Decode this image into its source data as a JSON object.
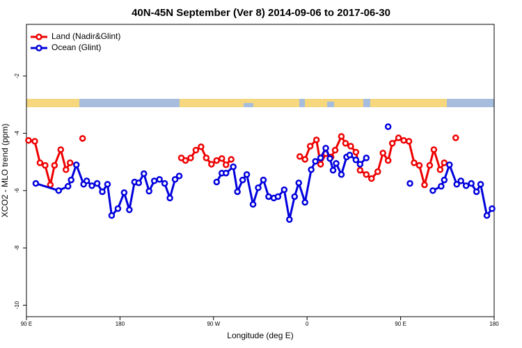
{
  "chart_data": {
    "type": "line",
    "title": "40N-45N September (Ver 8)   2014-09-06 to 2017-06-30",
    "x_label": "Longitude (deg E)",
    "y_label": "XCO2 - MLO trend (ppm)",
    "xlim": [
      90,
      540
    ],
    "xticks": [
      {
        "value": 90,
        "label": "90 E"
      },
      {
        "value": 180,
        "label": "180"
      },
      {
        "value": 270,
        "label": "90 W"
      },
      {
        "value": 360,
        "label": "0"
      },
      {
        "value": 450,
        "label": "90 E"
      },
      {
        "value": 540,
        "label": "180"
      }
    ],
    "ylim": [
      -10.4,
      -0.2
    ],
    "yticks": [
      -2,
      -4,
      -6,
      -8,
      -10
    ],
    "legend": "top-left",
    "series": [
      {
        "name": "Land (Nadir&Glint)",
        "color": "#ee0000",
        "x": [
          92,
          98,
          103,
          108,
          113,
          117,
          123,
          128,
          132,
          137,
          144,
          200,
          239,
          243,
          248,
          253,
          258,
          263,
          268,
          273,
          278,
          282,
          287,
          330,
          353,
          358,
          363,
          369,
          373,
          378,
          383,
          387,
          393,
          397,
          402,
          407,
          411,
          417,
          422,
          428,
          433,
          438,
          442,
          448,
          453,
          458,
          463,
          468,
          473,
          478,
          482,
          488,
          492,
          500,
          503
        ],
        "values": [
          -4.25,
          -4.28,
          -5.03,
          -5.12,
          -5.8,
          -5.12,
          -4.57,
          -5.27,
          -5.03,
          null,
          -4.18,
          null,
          -4.86,
          -4.95,
          -4.86,
          -4.59,
          -4.47,
          -4.86,
          -5.08,
          -4.95,
          -4.88,
          -5.1,
          -4.91,
          null,
          -4.81,
          -4.91,
          -4.45,
          -4.23,
          -5.08,
          -4.71,
          -4.83,
          -4.59,
          -4.11,
          -4.35,
          -4.45,
          -4.66,
          -5.29,
          -5.44,
          -5.58,
          -5.34,
          -4.69,
          -4.95,
          -4.35,
          -4.16,
          -4.25,
          -4.28,
          -5.03,
          -5.12,
          -5.8,
          -5.12,
          -4.57,
          -5.27,
          -5.03,
          null,
          -4.16
        ]
      },
      {
        "name": "Ocean (Glint)",
        "color": "#0000dd",
        "x": [
          99,
          121,
          130,
          133,
          138,
          145,
          148,
          153,
          158,
          163,
          168,
          172,
          178,
          184,
          189,
          194,
          198,
          203,
          208,
          213,
          218,
          223,
          228,
          233,
          237,
          260,
          273,
          278,
          282,
          289,
          293,
          298,
          302,
          308,
          313,
          318,
          323,
          328,
          332,
          338,
          343,
          348,
          352,
          358,
          364,
          368,
          373,
          378,
          382,
          385,
          388,
          393,
          398,
          401,
          407,
          411,
          417,
          425,
          438,
          450,
          459,
          465,
          481,
          489,
          492,
          497,
          504,
          508,
          513,
          518,
          523,
          527,
          533,
          538
        ],
        "values": [
          -5.75,
          -6.0,
          -5.85,
          -5.63,
          -5.1,
          -5.78,
          -5.66,
          -5.83,
          -5.75,
          -6.04,
          -5.78,
          -6.87,
          -6.63,
          -6.07,
          -6.67,
          -5.7,
          -5.73,
          -5.41,
          -6.02,
          -5.66,
          -5.61,
          -5.75,
          -6.26,
          -5.61,
          -5.49,
          null,
          -5.7,
          -5.39,
          -5.39,
          -5.17,
          -6.04,
          -5.63,
          -5.44,
          -6.48,
          -5.9,
          -5.63,
          -6.21,
          -6.26,
          -6.21,
          -5.97,
          -7.01,
          -6.21,
          -5.73,
          -6.41,
          -5.27,
          -4.98,
          -4.86,
          -4.52,
          -4.88,
          -5.29,
          -5.05,
          -5.44,
          -4.83,
          -4.76,
          -4.93,
          -5.08,
          -4.86,
          null,
          -3.77,
          null,
          -5.75,
          null,
          -6.0,
          -5.85,
          -5.63,
          -5.1,
          -5.78,
          -5.66,
          -5.83,
          -5.75,
          -6.04,
          -5.78,
          -6.87,
          -6.63
        ]
      }
    ]
  }
}
